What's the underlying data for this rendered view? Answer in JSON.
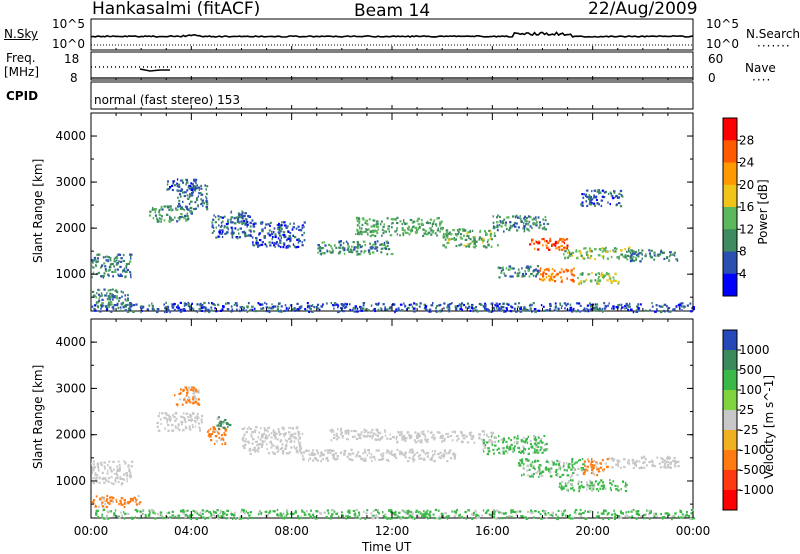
{
  "header": {
    "station": "Hankasalmi (fitACF)",
    "beam": "Beam 14",
    "date": "22/Aug/2009"
  },
  "noise_panel": {
    "left_label": "N.Sky",
    "right_label": "N.Search",
    "left_ticks": [
      "10^5",
      "10^0"
    ],
    "right_ticks": [
      "10^5",
      "10^0"
    ]
  },
  "freq_panel": {
    "left_label_1": "Freq.",
    "left_label_2": "[MHz]",
    "left_ticks": [
      "18",
      "8"
    ],
    "right_label": "Nave",
    "right_ticks": [
      "60",
      "0"
    ]
  },
  "cpid_panel": {
    "label": "CPID",
    "mode": "normal (fast stereo) 153"
  },
  "colors": {
    "power": [
      "#0000ff",
      "#2a4fb0",
      "#3d8b5e",
      "#5cb85c",
      "#f0c419",
      "#ff9900",
      "#ff5a00",
      "#ff0000"
    ],
    "velocity": [
      "#2648b8",
      "#3a8a5c",
      "#3ab848",
      "#80d440",
      "#c8c8c8",
      "#f0b020",
      "#ff7a10",
      "#ff3a10",
      "#ff0000"
    ]
  },
  "chart_data": [
    {
      "type": "heatmap",
      "title": "Power",
      "ylabel": "Slant Range [km]",
      "xlabel": "",
      "ylim": [
        200,
        4500
      ],
      "xlim": [
        "00:00",
        "24:00"
      ],
      "yticks": [
        "1000",
        "2000",
        "3000",
        "4000"
      ],
      "colorbar": {
        "label": "Power [dB]",
        "ticks": [
          "4",
          "8",
          "12",
          "16",
          "20",
          "24",
          "28"
        ],
        "range": [
          0,
          32
        ]
      },
      "patches": [
        {
          "t0": 0.0,
          "t1": 1.5,
          "r0": 300,
          "r1": 700,
          "v": 10
        },
        {
          "t0": 0.0,
          "t1": 1.6,
          "r0": 950,
          "r1": 1450,
          "v": 9
        },
        {
          "t0": 2.3,
          "t1": 4.0,
          "r0": 2150,
          "r1": 2500,
          "v": 11
        },
        {
          "t0": 3.4,
          "t1": 4.6,
          "r0": 2400,
          "r1": 2950,
          "v": 8
        },
        {
          "t0": 4.8,
          "t1": 6.4,
          "r0": 1800,
          "r1": 2300,
          "v": 7
        },
        {
          "t0": 6.4,
          "t1": 8.5,
          "r0": 1600,
          "r1": 2150,
          "v": 6
        },
        {
          "t0": 9.0,
          "t1": 12.0,
          "r0": 1450,
          "r1": 1750,
          "v": 10
        },
        {
          "t0": 10.5,
          "t1": 14.0,
          "r0": 1850,
          "r1": 2250,
          "v": 12
        },
        {
          "t0": 14.0,
          "t1": 16.2,
          "r0": 1600,
          "r1": 2000,
          "v": 13
        },
        {
          "t0": 16.0,
          "t1": 18.2,
          "r0": 1950,
          "r1": 2300,
          "v": 10
        },
        {
          "t0": 17.4,
          "t1": 19.0,
          "r0": 1550,
          "r1": 1800,
          "v": 26
        },
        {
          "t0": 18.8,
          "t1": 21.5,
          "r0": 1350,
          "r1": 1600,
          "v": 14
        },
        {
          "t0": 21.3,
          "t1": 23.4,
          "r0": 1300,
          "r1": 1550,
          "v": 9
        },
        {
          "t0": 16.2,
          "t1": 17.8,
          "r0": 950,
          "r1": 1200,
          "v": 9
        },
        {
          "t0": 17.8,
          "t1": 19.3,
          "r0": 850,
          "r1": 1150,
          "v": 24
        },
        {
          "t0": 19.3,
          "t1": 21.0,
          "r0": 800,
          "r1": 1050,
          "v": 15
        },
        {
          "t0": 0.0,
          "t1": 24.0,
          "r0": 200,
          "r1": 400,
          "v": 6
        },
        {
          "t0": 3.0,
          "t1": 4.2,
          "r0": 2850,
          "r1": 3100,
          "v": 6
        },
        {
          "t0": 5.5,
          "t1": 6.2,
          "r0": 2100,
          "r1": 2400,
          "v": 8
        },
        {
          "t0": 19.5,
          "t1": 21.2,
          "r0": 2500,
          "r1": 2850,
          "v": 7
        }
      ]
    },
    {
      "type": "heatmap",
      "title": "Velocity",
      "ylabel": "Slant Range [km]",
      "xlabel": "Time UT",
      "ylim": [
        200,
        4500
      ],
      "xlim": [
        "00:00",
        "24:00"
      ],
      "yticks": [
        "1000",
        "2000",
        "3000",
        "4000"
      ],
      "xticks": [
        "00:00",
        "04:00",
        "08:00",
        "12:00",
        "16:00",
        "20:00",
        "00:00"
      ],
      "colorbar": {
        "label": "Velocity [m s^-1]",
        "ticks": [
          "1000",
          "500",
          "100",
          "25",
          "-25",
          "-100",
          "-500",
          "-1000"
        ]
      },
      "patches": [
        {
          "t0": 0.0,
          "t1": 2.0,
          "r0": 450,
          "r1": 700,
          "v": -150
        },
        {
          "t0": 0.0,
          "t1": 1.6,
          "r0": 950,
          "r1": 1450,
          "v": 0
        },
        {
          "t0": 2.6,
          "t1": 4.4,
          "r0": 2100,
          "r1": 2500,
          "v": 0
        },
        {
          "t0": 3.3,
          "t1": 4.3,
          "r0": 2650,
          "r1": 3050,
          "v": -300
        },
        {
          "t0": 4.6,
          "t1": 5.4,
          "r0": 1800,
          "r1": 2200,
          "v": -200
        },
        {
          "t0": 6.0,
          "t1": 8.4,
          "r0": 1600,
          "r1": 2200,
          "v": 0
        },
        {
          "t0": 8.4,
          "t1": 14.5,
          "r0": 1450,
          "r1": 1700,
          "v": 0
        },
        {
          "t0": 12.0,
          "t1": 16.0,
          "r0": 1850,
          "r1": 2100,
          "v": 0
        },
        {
          "t0": 15.6,
          "t1": 18.2,
          "r0": 1600,
          "r1": 2000,
          "v": 60
        },
        {
          "t0": 17.0,
          "t1": 19.6,
          "r0": 1100,
          "r1": 1500,
          "v": 40
        },
        {
          "t0": 19.6,
          "t1": 20.6,
          "r0": 1150,
          "r1": 1500,
          "v": -200
        },
        {
          "t0": 20.6,
          "t1": 23.4,
          "r0": 1300,
          "r1": 1550,
          "v": 0
        },
        {
          "t0": 18.6,
          "t1": 21.4,
          "r0": 800,
          "r1": 1050,
          "v": 40
        },
        {
          "t0": 0.0,
          "t1": 24.0,
          "r0": 200,
          "r1": 400,
          "v": 50
        },
        {
          "t0": 9.5,
          "t1": 12.0,
          "r0": 1900,
          "r1": 2150,
          "v": 0
        },
        {
          "t0": 5.0,
          "t1": 5.6,
          "r0": 2150,
          "r1": 2400,
          "v": 200
        }
      ]
    }
  ]
}
